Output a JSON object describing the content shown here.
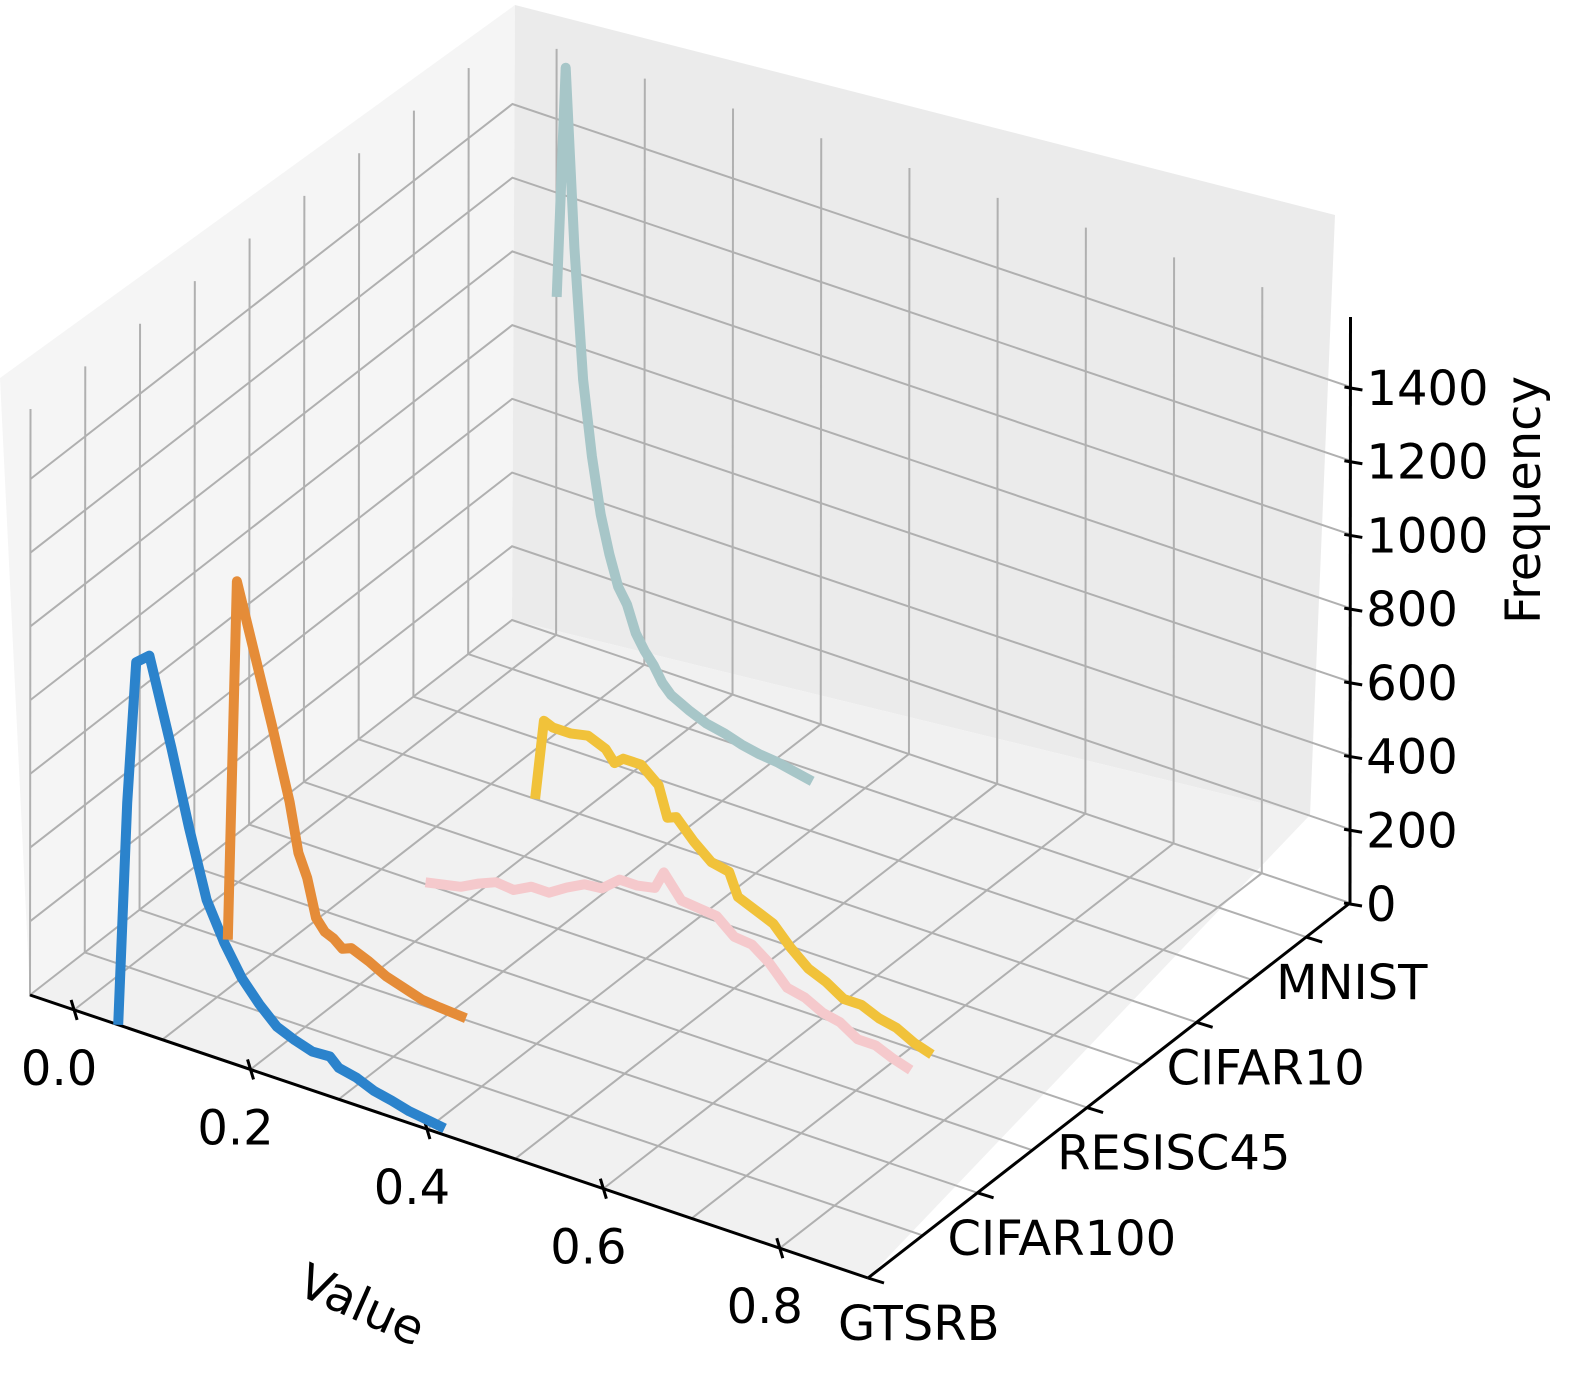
{
  "chart_data": {
    "type": "line",
    "projection": "3d",
    "xlabel": "Value",
    "ylabel": "",
    "zlabel": "Frequency",
    "x_ticks": [
      "0.0",
      "0.2",
      "0.4",
      "0.6",
      "0.8"
    ],
    "z_ticks": [
      "0",
      "200",
      "400",
      "600",
      "800",
      "1000",
      "1200",
      "1400"
    ],
    "depth_categories": [
      "GTSRB",
      "CIFAR100",
      "RESISC45",
      "CIFAR10",
      "MNIST"
    ],
    "grid": true,
    "series": [
      {
        "name": "GTSRB",
        "color": "#2b83cc",
        "points": [
          [
            0.05,
            0
          ],
          [
            0.06,
            610
          ],
          [
            0.07,
            1000
          ],
          [
            0.085,
            1030
          ],
          [
            0.11,
            800
          ],
          [
            0.13,
            600
          ],
          [
            0.15,
            420
          ],
          [
            0.17,
            320
          ],
          [
            0.19,
            240
          ],
          [
            0.21,
            185
          ],
          [
            0.23,
            140
          ],
          [
            0.25,
            120
          ],
          [
            0.27,
            105
          ],
          [
            0.29,
            108
          ],
          [
            0.3,
            85
          ],
          [
            0.32,
            75
          ],
          [
            0.34,
            55
          ],
          [
            0.36,
            45
          ],
          [
            0.38,
            32
          ],
          [
            0.4,
            25
          ],
          [
            0.42,
            18
          ]
        ]
      },
      {
        "name": "CIFAR100",
        "color": "#e58c38",
        "points": [
          [
            0.05,
            0
          ],
          [
            0.06,
            980
          ],
          [
            0.08,
            800
          ],
          [
            0.1,
            620
          ],
          [
            0.12,
            430
          ],
          [
            0.13,
            300
          ],
          [
            0.14,
            240
          ],
          [
            0.15,
            140
          ],
          [
            0.16,
            110
          ],
          [
            0.17,
            100
          ],
          [
            0.18,
            80
          ],
          [
            0.19,
            90
          ],
          [
            0.21,
            70
          ],
          [
            0.23,
            45
          ],
          [
            0.25,
            30
          ],
          [
            0.27,
            15
          ],
          [
            0.29,
            10
          ],
          [
            0.32,
            5
          ]
        ]
      },
      {
        "name": "RESISC45",
        "color": "#f5c9cc",
        "points": [
          [
            0.15,
            5
          ],
          [
            0.17,
            15
          ],
          [
            0.19,
            25
          ],
          [
            0.21,
            50
          ],
          [
            0.23,
            70
          ],
          [
            0.25,
            65
          ],
          [
            0.27,
            90
          ],
          [
            0.29,
            90
          ],
          [
            0.31,
            120
          ],
          [
            0.33,
            145
          ],
          [
            0.35,
            150
          ],
          [
            0.37,
            190
          ],
          [
            0.39,
            190
          ],
          [
            0.41,
            200
          ],
          [
            0.42,
            250
          ],
          [
            0.44,
            190
          ],
          [
            0.46,
            185
          ],
          [
            0.48,
            180
          ],
          [
            0.5,
            140
          ],
          [
            0.52,
            135
          ],
          [
            0.54,
            100
          ],
          [
            0.56,
            50
          ],
          [
            0.58,
            40
          ],
          [
            0.6,
            15
          ],
          [
            0.62,
            5
          ],
          [
            0.64,
            -25
          ],
          [
            0.66,
            -25
          ],
          [
            0.68,
            -45
          ],
          [
            0.7,
            -60
          ]
        ]
      },
      {
        "name": "CIFAR10",
        "color": "#f1c23a",
        "points": [
          [
            0.15,
            0
          ],
          [
            0.16,
            220
          ],
          [
            0.17,
            210
          ],
          [
            0.19,
            210
          ],
          [
            0.21,
            220
          ],
          [
            0.23,
            200
          ],
          [
            0.24,
            170
          ],
          [
            0.25,
            190
          ],
          [
            0.27,
            190
          ],
          [
            0.29,
            150
          ],
          [
            0.3,
            70
          ],
          [
            0.31,
            80
          ],
          [
            0.33,
            30
          ],
          [
            0.35,
            -10
          ],
          [
            0.37,
            -20
          ],
          [
            0.38,
            -80
          ],
          [
            0.4,
            -100
          ],
          [
            0.42,
            -120
          ],
          [
            0.44,
            -170
          ],
          [
            0.46,
            -210
          ],
          [
            0.48,
            -230
          ],
          [
            0.5,
            -260
          ],
          [
            0.52,
            -260
          ],
          [
            0.54,
            -280
          ],
          [
            0.56,
            -290
          ],
          [
            0.58,
            -315
          ],
          [
            0.6,
            -330
          ]
        ]
      },
      {
        "name": "MNIST",
        "color": "#a7c6c8",
        "points": [
          [
            0.05,
            1050
          ],
          [
            0.06,
            1680
          ],
          [
            0.07,
            1200
          ],
          [
            0.08,
            850
          ],
          [
            0.09,
            650
          ],
          [
            0.1,
            500
          ],
          [
            0.11,
            400
          ],
          [
            0.12,
            320
          ],
          [
            0.13,
            280
          ],
          [
            0.14,
            210
          ],
          [
            0.15,
            170
          ],
          [
            0.16,
            140
          ],
          [
            0.17,
            100
          ],
          [
            0.18,
            75
          ],
          [
            0.2,
            50
          ],
          [
            0.22,
            30
          ],
          [
            0.24,
            20
          ],
          [
            0.26,
            5
          ],
          [
            0.28,
            -5
          ],
          [
            0.3,
            -10
          ],
          [
            0.32,
            -20
          ],
          [
            0.34,
            -30
          ]
        ]
      }
    ]
  }
}
